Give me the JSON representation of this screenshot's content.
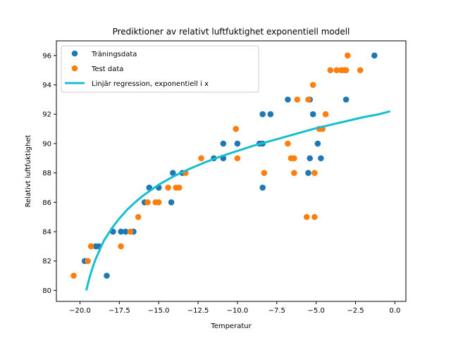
{
  "chart_data": {
    "type": "scatter",
    "title": "Prediktioner av relativt luftfuktighet exponentiell modell",
    "xlabel": "Temperatur",
    "ylabel": "Relativt luftfuktighet",
    "xlim": [
      -21.5,
      0.7
    ],
    "ylim": [
      79.25,
      97.0
    ],
    "xticks": [
      -20.0,
      -17.5,
      -15.0,
      -12.5,
      -10.0,
      -7.5,
      -5.0,
      -2.5,
      0.0
    ],
    "xtick_labels": [
      "−20.0",
      "−17.5",
      "−15.0",
      "−12.5",
      "−10.0",
      "−7.5",
      "−5.0",
      "−2.5",
      "0.0"
    ],
    "yticks": [
      80,
      82,
      84,
      86,
      88,
      90,
      92,
      94,
      96
    ],
    "ytick_labels": [
      "80",
      "82",
      "84",
      "86",
      "88",
      "90",
      "92",
      "94",
      "96"
    ],
    "grid": false,
    "legend_position": "upper-left",
    "series": [
      {
        "name": "Träningsdata",
        "kind": "scatter",
        "color": "#1f77b4",
        "points": [
          [
            -19.7,
            82
          ],
          [
            -19.0,
            83
          ],
          [
            -18.8,
            83
          ],
          [
            -18.3,
            81
          ],
          [
            -17.9,
            84
          ],
          [
            -17.4,
            84
          ],
          [
            -17.1,
            84
          ],
          [
            -16.6,
            84
          ],
          [
            -15.9,
            86
          ],
          [
            -15.6,
            87
          ],
          [
            -15.0,
            87
          ],
          [
            -14.2,
            86
          ],
          [
            -14.1,
            88
          ],
          [
            -13.5,
            88
          ],
          [
            -11.5,
            89
          ],
          [
            -10.9,
            89
          ],
          [
            -10.9,
            90
          ],
          [
            -10.0,
            90
          ],
          [
            -8.6,
            90
          ],
          [
            -8.4,
            90
          ],
          [
            -8.4,
            92
          ],
          [
            -8.4,
            87
          ],
          [
            -7.9,
            92
          ],
          [
            -6.8,
            93
          ],
          [
            -5.5,
            88
          ],
          [
            -5.4,
            93
          ],
          [
            -5.4,
            89
          ],
          [
            -5.2,
            92
          ],
          [
            -4.9,
            90
          ],
          [
            -4.7,
            89
          ],
          [
            -3.1,
            93
          ],
          [
            -1.3,
            96
          ]
        ]
      },
      {
        "name": "Test data",
        "kind": "scatter",
        "color": "#ff7f0e",
        "points": [
          [
            -20.4,
            81
          ],
          [
            -19.5,
            82
          ],
          [
            -19.3,
            83
          ],
          [
            -17.4,
            83
          ],
          [
            -16.8,
            84
          ],
          [
            -16.3,
            85
          ],
          [
            -15.7,
            86
          ],
          [
            -15.2,
            86
          ],
          [
            -15.0,
            86
          ],
          [
            -14.4,
            87
          ],
          [
            -13.9,
            87
          ],
          [
            -13.7,
            87
          ],
          [
            -13.3,
            88
          ],
          [
            -12.3,
            89
          ],
          [
            -10.1,
            91
          ],
          [
            -10.0,
            89
          ],
          [
            -8.3,
            88
          ],
          [
            -6.8,
            90
          ],
          [
            -6.6,
            89
          ],
          [
            -6.4,
            89
          ],
          [
            -6.4,
            88
          ],
          [
            -6.2,
            93
          ],
          [
            -5.6,
            85
          ],
          [
            -5.5,
            93
          ],
          [
            -5.1,
            88
          ],
          [
            -5.2,
            94
          ],
          [
            -5.1,
            85
          ],
          [
            -4.8,
            91
          ],
          [
            -4.6,
            91
          ],
          [
            -4.4,
            92
          ],
          [
            -4.1,
            95
          ],
          [
            -3.7,
            95
          ],
          [
            -3.4,
            95
          ],
          [
            -3.2,
            95
          ],
          [
            -3.0,
            96
          ],
          [
            -3.1,
            95
          ],
          [
            -2.2,
            95
          ]
        ]
      },
      {
        "name": "Linjär regression, exponentiell i x",
        "kind": "line",
        "color": "#17becf",
        "points": [
          [
            -19.6,
            80.0
          ],
          [
            -19.4,
            80.85
          ],
          [
            -19.2,
            81.55
          ],
          [
            -19.0,
            82.15
          ],
          [
            -18.5,
            83.35
          ],
          [
            -18.0,
            84.2
          ],
          [
            -17.5,
            84.9
          ],
          [
            -17.0,
            85.5
          ],
          [
            -16.5,
            86.0
          ],
          [
            -16.0,
            86.45
          ],
          [
            -15.0,
            87.2
          ],
          [
            -14.0,
            87.8
          ],
          [
            -13.0,
            88.3
          ],
          [
            -12.0,
            88.75
          ],
          [
            -11.0,
            89.15
          ],
          [
            -10.0,
            89.5
          ],
          [
            -9.0,
            89.85
          ],
          [
            -8.0,
            90.15
          ],
          [
            -7.0,
            90.45
          ],
          [
            -6.0,
            90.75
          ],
          [
            -5.0,
            91.05
          ],
          [
            -4.0,
            91.3
          ],
          [
            -3.0,
            91.55
          ],
          [
            -2.0,
            91.8
          ],
          [
            -1.0,
            92.0
          ],
          [
            -0.3,
            92.2
          ]
        ]
      }
    ]
  }
}
